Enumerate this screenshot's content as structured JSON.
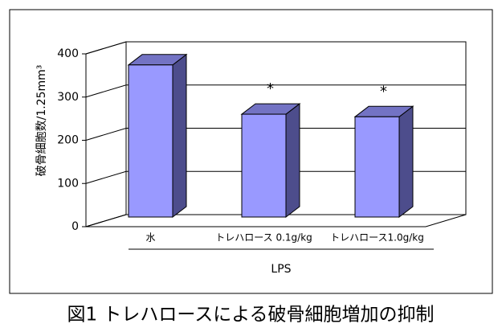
{
  "chart_data": {
    "type": "bar3d",
    "y_label": "破骨細胞数/1.25mm³",
    "categories": [
      "水",
      "トレハロース 0.1g/kg",
      "トレハロース1.0g/kg"
    ],
    "values": [
      352,
      238,
      232
    ],
    "color": "#9999ff",
    "ylim": [
      0,
      400
    ],
    "yticks": [
      0,
      100,
      200,
      300,
      400
    ],
    "grid": true,
    "group_label": "LPS",
    "annotations": [
      "*",
      "*"
    ]
  },
  "caption": "図1 トレハロースによる破骨細胞増加の抑制"
}
